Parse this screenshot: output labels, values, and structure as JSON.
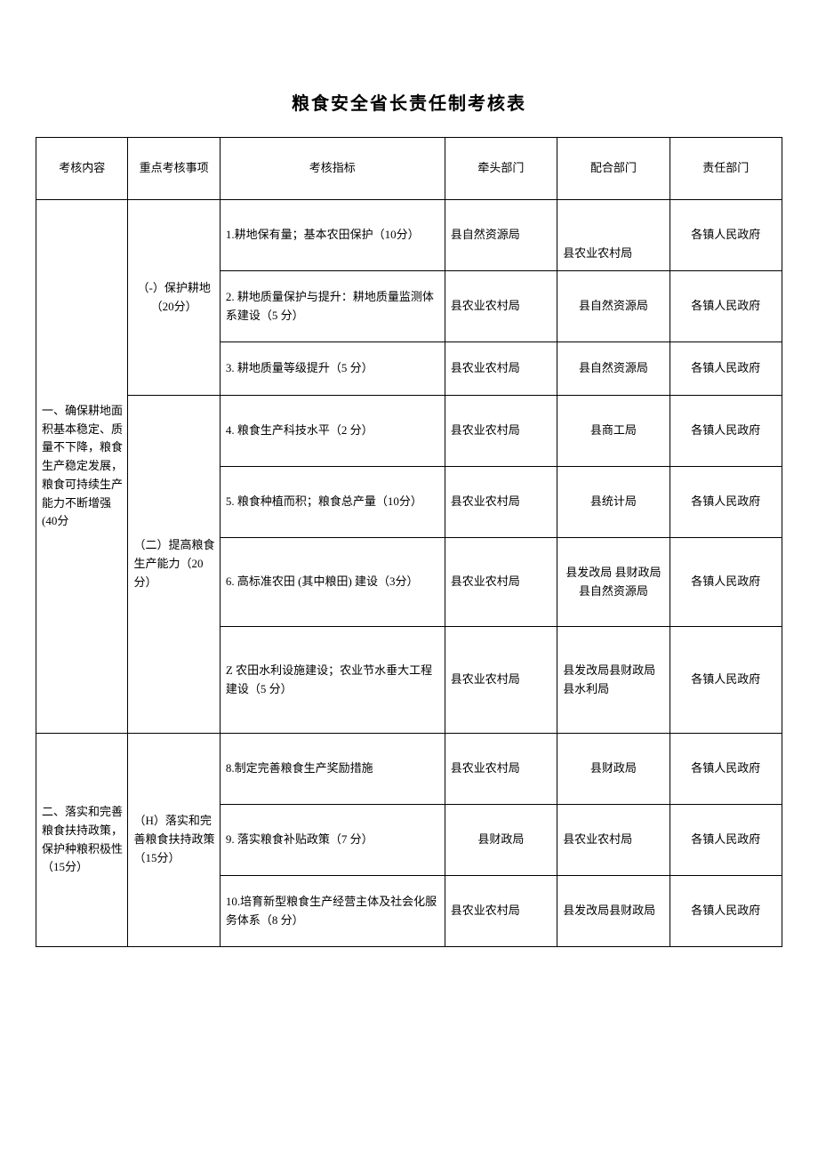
{
  "title": "粮食安全省长责任制考核表",
  "headers": {
    "col1": "考核内容",
    "col2": "重点考核事项",
    "col3": "考核指标",
    "col4": "牵头部门",
    "col5": "配合部门",
    "col6": "责任部门"
  },
  "section1": {
    "content": "一、确保耕地面积基本稳定、质量不下降，粮食生产稳定发展，粮食可持续生产能力不断增强(40分",
    "item1": "（-）保护耕地（20分）",
    "item2": "（二）提高粮食生产能力（20分）",
    "rows": [
      {
        "indicator": "1.耕地保有量；基本农田保护（10分）",
        "lead": "县自然资源局",
        "coop": "县农业农村局",
        "resp": "各镇人民政府"
      },
      {
        "indicator": "2. 耕地质量保护与提升：耕地质量监测体系建设（5 分）",
        "lead": "县农业农村局",
        "coop": "县自然资源局",
        "resp": "各镇人民政府"
      },
      {
        "indicator": "3. 耕地质量等级提升（5 分）",
        "lead": "县农业农村局",
        "coop": "县自然资源局",
        "resp": "各镇人民政府"
      },
      {
        "indicator": "4. 粮食生产科技水平（2 分）",
        "lead": "县农业农村局",
        "coop": "县商工局",
        "resp": "各镇人民政府"
      },
      {
        "indicator": "5. 粮食种植而积；粮食总产量（10分）",
        "lead": "县农业农村局",
        "coop": "县统计局",
        "resp": "各镇人民政府"
      },
      {
        "indicator": "6. 高标准农田 (其中粮田) 建设（3分）",
        "lead": "县农业农村局",
        "coop": "县发改局 县财政局县自然资源局",
        "resp": "各镇人民政府"
      },
      {
        "indicator": "Z 农田水利设施建设；农业节水垂大工程建设（5 分）",
        "lead": "县农业农村局",
        "coop": "县发改局县财政局县水利局",
        "resp": "各镇人民政府"
      }
    ]
  },
  "section2": {
    "content": "二、落实和完善粮食扶持政策，保护种粮积极性（15分）",
    "item1": "（H）落实和完善粮食扶持政策（15分）",
    "rows": [
      {
        "indicator": "8.制定完善粮食生产奖励措施",
        "lead": "县农业农村局",
        "coop": "县财政局",
        "resp": "各镇人民政府"
      },
      {
        "indicator": "9. 落实粮食补贴政策（7 分）",
        "lead": "县财政局",
        "coop": "县农业农村局",
        "resp": "各镇人民政府"
      },
      {
        "indicator": "10.培育新型粮食生产经营主体及社会化服务体系（8 分）",
        "lead": "县农业农村局",
        "coop": "县发改局县财政局",
        "resp": "各镇人民政府"
      }
    ]
  }
}
